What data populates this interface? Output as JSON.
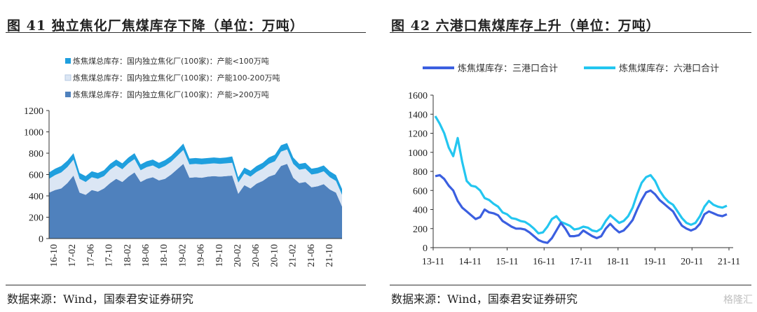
{
  "left": {
    "title": "图 41  独立焦化厂焦煤库存下降（单位：万吨）",
    "source": "数据来源：Wind，国泰君安证券研究",
    "chart_data": {
      "type": "area",
      "stacked": true,
      "legend_position": "top-left",
      "grid": false,
      "ylim": [
        0,
        1200
      ],
      "yticks": [
        "0",
        "200",
        "400",
        "600",
        "800",
        "1000",
        "1200"
      ],
      "xticks": [
        "16-10",
        "17-02",
        "17-06",
        "17-10",
        "18-02",
        "18-06",
        "18-10",
        "19-02",
        "19-06",
        "19-10",
        "20-02",
        "20-06",
        "20-10",
        "21-02",
        "21-06",
        "21-10"
      ],
      "series": [
        {
          "name": "炼焦煤总库存：国内独立焦化厂(100家)：产能>200万吨",
          "color": "#4f81bd",
          "values": [
            430,
            455,
            470,
            520,
            590,
            430,
            410,
            455,
            440,
            470,
            520,
            560,
            530,
            580,
            620,
            530,
            560,
            575,
            545,
            560,
            600,
            650,
            700,
            570,
            575,
            570,
            580,
            585,
            580,
            585,
            590,
            420,
            500,
            470,
            515,
            540,
            580,
            600,
            680,
            700,
            570,
            520,
            530,
            480,
            490,
            510,
            460,
            430,
            300
          ]
        },
        {
          "name": "炼焦煤总库存：国内独立焦化厂(100家)：产能100-200万吨",
          "color": "#dbe6f4",
          "values": [
            130,
            140,
            150,
            150,
            150,
            130,
            120,
            120,
            120,
            115,
            125,
            125,
            120,
            125,
            125,
            110,
            110,
            110,
            110,
            120,
            120,
            125,
            130,
            125,
            125,
            125,
            120,
            120,
            120,
            120,
            120,
            105,
            110,
            110,
            110,
            115,
            120,
            125,
            135,
            135,
            130,
            125,
            125,
            120,
            120,
            120,
            115,
            110,
            110
          ]
        },
        {
          "name": "炼焦煤总库存：国内独立焦化厂(100家)：产能<100万吨",
          "color": "#1f9fde",
          "values": [
            60,
            60,
            60,
            60,
            60,
            55,
            55,
            55,
            55,
            55,
            55,
            55,
            55,
            55,
            55,
            55,
            55,
            55,
            55,
            55,
            55,
            55,
            60,
            55,
            55,
            55,
            55,
            55,
            55,
            55,
            60,
            50,
            55,
            55,
            55,
            55,
            60,
            60,
            60,
            60,
            60,
            55,
            55,
            55,
            55,
            55,
            55,
            55,
            55
          ]
        }
      ]
    }
  },
  "right": {
    "title": "图 42  六港口焦煤库存上升（单位：万吨）",
    "source": "数据来源：Wind，国泰君安证券研究",
    "chart_data": {
      "type": "line",
      "legend_position": "top",
      "grid": false,
      "ylim": [
        0,
        1600
      ],
      "yticks": [
        "0",
        "200",
        "400",
        "600",
        "800",
        "1000",
        "1200",
        "1400",
        "1600"
      ],
      "xticks": [
        "13-11",
        "14-11",
        "15-11",
        "16-11",
        "17-11",
        "18-11",
        "19-11",
        "20-11",
        "21-11"
      ],
      "series": [
        {
          "name": "炼焦煤库存：三港口合计",
          "color": "#3b5fe0",
          "values": [
            750,
            760,
            720,
            650,
            600,
            490,
            420,
            380,
            340,
            300,
            320,
            400,
            370,
            360,
            340,
            280,
            250,
            220,
            200,
            200,
            190,
            160,
            120,
            80,
            60,
            50,
            100,
            180,
            260,
            200,
            120,
            120,
            130,
            180,
            150,
            120,
            100,
            120,
            200,
            250,
            200,
            160,
            180,
            230,
            290,
            400,
            500,
            580,
            600,
            560,
            500,
            460,
            420,
            380,
            300,
            230,
            200,
            180,
            200,
            250,
            350,
            380,
            360,
            340,
            330,
            350
          ]
        },
        {
          "name": "炼焦煤库存：六港口合计",
          "color": "#23c6f0",
          "values": [
            1380,
            1300,
            1200,
            1050,
            960,
            1150,
            900,
            700,
            650,
            640,
            600,
            520,
            500,
            460,
            430,
            370,
            350,
            310,
            300,
            280,
            270,
            240,
            200,
            150,
            160,
            220,
            300,
            330,
            270,
            250,
            230,
            190,
            200,
            220,
            210,
            180,
            170,
            200,
            280,
            340,
            300,
            260,
            280,
            330,
            420,
            560,
            680,
            740,
            760,
            700,
            600,
            530,
            480,
            450,
            380,
            310,
            260,
            240,
            260,
            330,
            430,
            490,
            450,
            430,
            420,
            440
          ]
        }
      ]
    }
  },
  "watermark": "格隆汇"
}
